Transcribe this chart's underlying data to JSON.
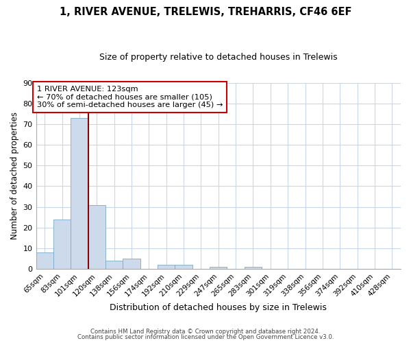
{
  "title": "1, RIVER AVENUE, TRELEWIS, TREHARRIS, CF46 6EF",
  "subtitle": "Size of property relative to detached houses in Trelewis",
  "xlabel": "Distribution of detached houses by size in Trelewis",
  "ylabel": "Number of detached properties",
  "bar_labels": [
    "65sqm",
    "83sqm",
    "101sqm",
    "120sqm",
    "138sqm",
    "156sqm",
    "174sqm",
    "192sqm",
    "210sqm",
    "229sqm",
    "247sqm",
    "265sqm",
    "283sqm",
    "301sqm",
    "319sqm",
    "338sqm",
    "356sqm",
    "374sqm",
    "392sqm",
    "410sqm",
    "428sqm"
  ],
  "bar_values": [
    8,
    24,
    73,
    31,
    4,
    5,
    0,
    2,
    2,
    0,
    1,
    0,
    1,
    0,
    0,
    0,
    0,
    0,
    0,
    0,
    0
  ],
  "bar_color": "#ccdaec",
  "bar_edge_color": "#7baac8",
  "ylim": [
    0,
    90
  ],
  "yticks": [
    0,
    10,
    20,
    30,
    40,
    50,
    60,
    70,
    80,
    90
  ],
  "property_line_color": "#8b0000",
  "annotation_box_color": "#cc0000",
  "annotation_title": "1 RIVER AVENUE: 123sqm",
  "annotation_line1": "← 70% of detached houses are smaller (105)",
  "annotation_line2": "30% of semi-detached houses are larger (45) →",
  "footer1": "Contains HM Land Registry data © Crown copyright and database right 2024.",
  "footer2": "Contains public sector information licensed under the Open Government Licence v3.0.",
  "background_color": "#ffffff",
  "grid_color": "#c8d8e8"
}
